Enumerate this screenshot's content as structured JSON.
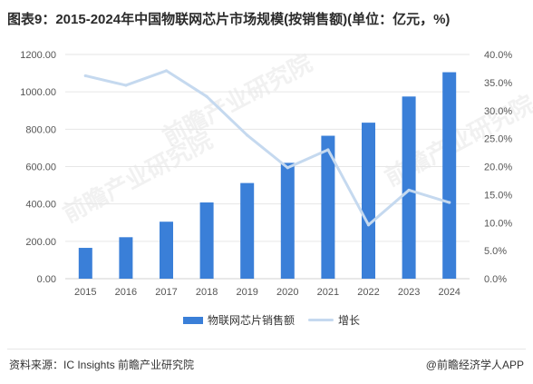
{
  "title": "图表9：2015-2024年中国物联网芯片市场规模(按销售额)(单位：亿元，%)",
  "footer": {
    "source": "资料来源：IC Insights 前瞻产业研究院",
    "brand": "@前瞻经济学人APP"
  },
  "watermark": "前瞻产业研究院",
  "colors": {
    "bar": "#3a7fd8",
    "line": "#c5d9ef",
    "grid": "#e6e6e6",
    "tick": "#555555"
  },
  "chart_data": {
    "type": "bar",
    "categories": [
      "2015",
      "2016",
      "2017",
      "2018",
      "2019",
      "2020",
      "2021",
      "2022",
      "2023",
      "2024"
    ],
    "series": [
      {
        "name": "物联网芯片销售额",
        "type": "bar",
        "axis": "left",
        "values": [
          165,
          222,
          305,
          408,
          512,
          620,
          765,
          835,
          975,
          1105
        ]
      },
      {
        "name": "增长",
        "type": "line",
        "axis": "right",
        "values": [
          36.2,
          34.5,
          37.1,
          32.5,
          25.6,
          19.8,
          23.0,
          9.6,
          15.8,
          13.6
        ]
      }
    ],
    "y_left": {
      "min": 0,
      "max": 1200,
      "ticks": [
        "0.00",
        "200.00",
        "400.00",
        "600.00",
        "800.00",
        "1000.00",
        "1200.00"
      ]
    },
    "y_right": {
      "min": 0,
      "max": 40,
      "ticks": [
        "0.0%",
        "5.0%",
        "10.0%",
        "15.0%",
        "20.0%",
        "25.0%",
        "30.0%",
        "35.0%",
        "40.0%"
      ]
    },
    "grid": true,
    "legend": "bottom"
  }
}
